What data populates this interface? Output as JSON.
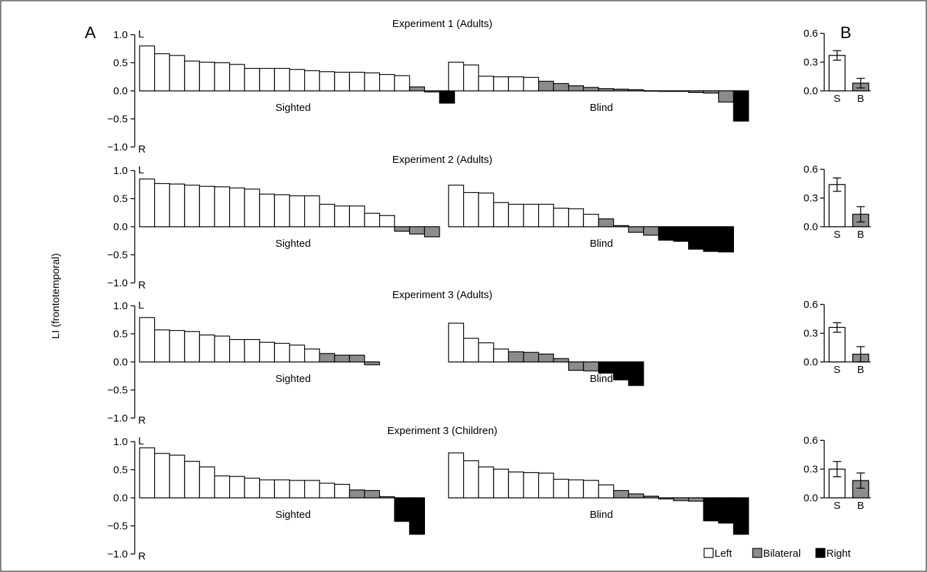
{
  "panel_labels": {
    "a": "A",
    "b": "B"
  },
  "y_axis_label": "LI (frontotemporal)",
  "axis_end_labels": {
    "top": "L",
    "bottom": "R"
  },
  "left_axis_ticks": [
    "1.0",
    "0.5",
    "0.0",
    "−0.5",
    "−1.0"
  ],
  "summary_axis_ticks": [
    "0.6",
    "0.3",
    "0.0"
  ],
  "legend": [
    {
      "label": "Left",
      "color": "#ffffff"
    },
    {
      "label": "Bilateral",
      "color": "#8c8c8c"
    },
    {
      "label": "Right",
      "color": "#000000"
    }
  ],
  "colors": {
    "left": "#ffffff",
    "bilateral": "#8c8c8c",
    "right": "#000000",
    "stroke": "#000000"
  },
  "chart_data": [
    {
      "type": "bar",
      "title": "Experiment 1 (Adults)",
      "ylim": [
        -1.0,
        1.0
      ],
      "groups": [
        {
          "label": "Sighted",
          "values": [
            0.8,
            0.66,
            0.63,
            0.53,
            0.51,
            0.5,
            0.47,
            0.4,
            0.4,
            0.4,
            0.38,
            0.36,
            0.34,
            0.33,
            0.33,
            0.32,
            0.29,
            0.27,
            0.07,
            -0.02,
            -0.22
          ],
          "categories": [
            "left",
            "left",
            "left",
            "left",
            "left",
            "left",
            "left",
            "left",
            "left",
            "left",
            "left",
            "left",
            "left",
            "left",
            "left",
            "left",
            "left",
            "left",
            "bilateral",
            "bilateral",
            "right"
          ]
        },
        {
          "label": "Blind",
          "values": [
            0.51,
            0.46,
            0.26,
            0.25,
            0.25,
            0.24,
            0.17,
            0.13,
            0.09,
            0.06,
            0.04,
            0.03,
            0.02,
            0.0,
            -0.01,
            -0.01,
            -0.03,
            -0.04,
            -0.2,
            -0.54
          ],
          "categories": [
            "left",
            "left",
            "left",
            "left",
            "left",
            "left",
            "bilateral",
            "bilateral",
            "bilateral",
            "bilateral",
            "bilateral",
            "bilateral",
            "bilateral",
            "bilateral",
            "bilateral",
            "bilateral",
            "bilateral",
            "bilateral",
            "bilateral",
            "right"
          ]
        }
      ],
      "summary": {
        "type": "bar",
        "categories": [
          "S",
          "B"
        ],
        "values": [
          0.37,
          0.08
        ],
        "errors": [
          0.05,
          0.05
        ],
        "ylim": [
          0,
          0.6
        ]
      }
    },
    {
      "type": "bar",
      "title": "Experiment 2 (Adults)",
      "ylim": [
        -1.0,
        1.0
      ],
      "groups": [
        {
          "label": "Sighted",
          "values": [
            0.85,
            0.77,
            0.76,
            0.74,
            0.72,
            0.71,
            0.69,
            0.67,
            0.58,
            0.57,
            0.55,
            0.55,
            0.4,
            0.37,
            0.37,
            0.24,
            0.2,
            -0.08,
            -0.13,
            -0.18
          ],
          "categories": [
            "left",
            "left",
            "left",
            "left",
            "left",
            "left",
            "left",
            "left",
            "left",
            "left",
            "left",
            "left",
            "left",
            "left",
            "left",
            "left",
            "left",
            "bilateral",
            "bilateral",
            "bilateral"
          ]
        },
        {
          "label": "Blind",
          "values": [
            0.74,
            0.61,
            0.6,
            0.43,
            0.4,
            0.4,
            0.4,
            0.33,
            0.32,
            0.22,
            0.14,
            0.02,
            -0.1,
            -0.15,
            -0.24,
            -0.26,
            -0.4,
            -0.44,
            -0.45
          ],
          "categories": [
            "left",
            "left",
            "left",
            "left",
            "left",
            "left",
            "left",
            "left",
            "left",
            "left",
            "bilateral",
            "bilateral",
            "bilateral",
            "bilateral",
            "right",
            "right",
            "right",
            "right",
            "right"
          ]
        }
      ],
      "summary": {
        "type": "bar",
        "categories": [
          "S",
          "B"
        ],
        "values": [
          0.44,
          0.13
        ],
        "errors": [
          0.07,
          0.08
        ],
        "ylim": [
          0,
          0.6
        ]
      }
    },
    {
      "type": "bar",
      "title": "Experiment 3 (Adults)",
      "ylim": [
        -1.0,
        1.0
      ],
      "groups": [
        {
          "label": "Sighted",
          "values": [
            0.79,
            0.57,
            0.56,
            0.54,
            0.48,
            0.46,
            0.4,
            0.4,
            0.35,
            0.33,
            0.3,
            0.23,
            0.15,
            0.12,
            0.12,
            -0.05
          ],
          "categories": [
            "left",
            "left",
            "left",
            "left",
            "left",
            "left",
            "left",
            "left",
            "left",
            "left",
            "left",
            "left",
            "bilateral",
            "bilateral",
            "bilateral",
            "bilateral"
          ]
        },
        {
          "label": "Blind",
          "values": [
            0.69,
            0.42,
            0.34,
            0.23,
            0.18,
            0.17,
            0.14,
            0.06,
            -0.15,
            -0.16,
            -0.2,
            -0.32,
            -0.42
          ],
          "categories": [
            "left",
            "left",
            "left",
            "left",
            "bilateral",
            "bilateral",
            "bilateral",
            "bilateral",
            "bilateral",
            "bilateral",
            "right",
            "right",
            "right"
          ]
        }
      ],
      "summary": {
        "type": "bar",
        "categories": [
          "S",
          "B"
        ],
        "values": [
          0.36,
          0.08
        ],
        "errors": [
          0.05,
          0.08
        ],
        "ylim": [
          0,
          0.6
        ]
      }
    },
    {
      "type": "bar",
      "title": "Experiment 3 (Children)",
      "ylim": [
        -1.0,
        1.0
      ],
      "groups": [
        {
          "label": "Sighted",
          "values": [
            0.89,
            0.79,
            0.76,
            0.65,
            0.55,
            0.39,
            0.38,
            0.35,
            0.32,
            0.32,
            0.31,
            0.31,
            0.26,
            0.24,
            0.14,
            0.13,
            0.02,
            -0.42,
            -0.65
          ],
          "categories": [
            "left",
            "left",
            "left",
            "left",
            "left",
            "left",
            "left",
            "left",
            "left",
            "left",
            "left",
            "left",
            "left",
            "left",
            "bilateral",
            "bilateral",
            "bilateral",
            "right",
            "right"
          ]
        },
        {
          "label": "Blind",
          "values": [
            0.8,
            0.66,
            0.55,
            0.51,
            0.46,
            0.45,
            0.44,
            0.33,
            0.32,
            0.31,
            0.23,
            0.13,
            0.07,
            0.03,
            -0.02,
            -0.05,
            -0.06,
            -0.41,
            -0.45,
            -0.65
          ],
          "categories": [
            "left",
            "left",
            "left",
            "left",
            "left",
            "left",
            "left",
            "left",
            "left",
            "left",
            "left",
            "bilateral",
            "bilateral",
            "bilateral",
            "bilateral",
            "bilateral",
            "bilateral",
            "right",
            "right",
            "right"
          ]
        }
      ],
      "summary": {
        "type": "bar",
        "categories": [
          "S",
          "B"
        ],
        "values": [
          0.3,
          0.18
        ],
        "errors": [
          0.08,
          0.08
        ],
        "ylim": [
          0,
          0.6
        ]
      }
    }
  ]
}
